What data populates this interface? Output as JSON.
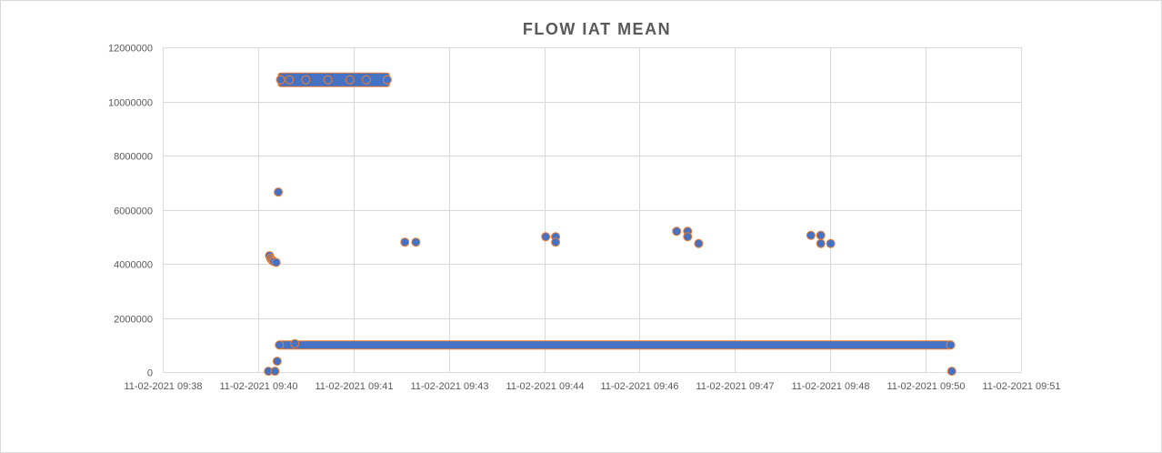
{
  "chart_data": {
    "type": "scatter",
    "title": "FLOW IAT MEAN",
    "xlabel": "",
    "ylabel": "",
    "ylim": [
      0,
      12000000
    ],
    "y_ticks": [
      0,
      2000000,
      4000000,
      6000000,
      8000000,
      10000000,
      12000000
    ],
    "y_tick_labels": [
      "0",
      "2000000",
      "4000000",
      "6000000",
      "8000000",
      "10000000",
      "12000000"
    ],
    "xlim": [
      "11-02-2021 09:38",
      "11-02-2021 09:51"
    ],
    "x_tick_labels": [
      "11-02-2021 09:38",
      "11-02-2021 09:40",
      "11-02-2021 09:41",
      "11-02-2021 09:43",
      "11-02-2021 09:44",
      "11-02-2021 09:46",
      "11-02-2021 09:47",
      "11-02-2021 09:48",
      "11-02-2021 09:50",
      "11-02-2021 09:51"
    ],
    "grid": true,
    "legend": "none",
    "marker_colors": {
      "fill": "#4472c4",
      "edge": "#ed7d31"
    },
    "points": [
      {
        "x": "11-02-2021 09:39:36",
        "y": 30000
      },
      {
        "x": "11-02-2021 09:39:37",
        "y": 4300000
      },
      {
        "x": "11-02-2021 09:39:38",
        "y": 4200000
      },
      {
        "x": "11-02-2021 09:39:39",
        "y": 4150000
      },
      {
        "x": "11-02-2021 09:39:40",
        "y": 4100000
      },
      {
        "x": "11-02-2021 09:39:41",
        "y": 4080000
      },
      {
        "x": "11-02-2021 09:39:42",
        "y": 30000
      },
      {
        "x": "11-02-2021 09:39:43",
        "y": 4050000
      },
      {
        "x": "11-02-2021 09:39:44",
        "y": 400000
      },
      {
        "x": "11-02-2021 09:39:45",
        "y": 6650000
      },
      {
        "x": "11-02-2021 09:39:46",
        "y": 1000000
      },
      {
        "x": "11-02-2021 09:39:47",
        "y": 10800000
      },
      {
        "x": "11-02-2021 09:39:55",
        "y": 10800000
      },
      {
        "x": "11-02-2021 09:40:00",
        "y": 1050000
      },
      {
        "x": "11-02-2021 09:40:10",
        "y": 10800000
      },
      {
        "x": "11-02-2021 09:40:30",
        "y": 10800000
      },
      {
        "x": "11-02-2021 09:40:50",
        "y": 10800000
      },
      {
        "x": "11-02-2021 09:41:05",
        "y": 10800000
      },
      {
        "x": "11-02-2021 09:41:24",
        "y": 10800000
      },
      {
        "x": "11-02-2021 09:41:40",
        "y": 4800000
      },
      {
        "x": "11-02-2021 09:41:50",
        "y": 4800000
      },
      {
        "x": "11-02-2021 09:43:48",
        "y": 5000000
      },
      {
        "x": "11-02-2021 09:43:57",
        "y": 5000000
      },
      {
        "x": "11-02-2021 09:43:57",
        "y": 4800000
      },
      {
        "x": "11-02-2021 09:45:47",
        "y": 5200000
      },
      {
        "x": "11-02-2021 09:45:57",
        "y": 5200000
      },
      {
        "x": "11-02-2021 09:45:57",
        "y": 5000000
      },
      {
        "x": "11-02-2021 09:46:07",
        "y": 4750000
      },
      {
        "x": "11-02-2021 09:47:49",
        "y": 5050000
      },
      {
        "x": "11-02-2021 09:47:58",
        "y": 5050000
      },
      {
        "x": "11-02-2021 09:47:58",
        "y": 4750000
      },
      {
        "x": "11-02-2021 09:48:07",
        "y": 4750000
      },
      {
        "x": "11-02-2021 09:49:56",
        "y": 1000000
      },
      {
        "x": "11-02-2021 09:49:57",
        "y": 30000
      }
    ],
    "dense_bands": [
      {
        "x_start": "11-02-2021 09:39:47",
        "x_end": "11-02-2021 09:41:24",
        "y": 10800000
      },
      {
        "x_start": "11-02-2021 09:39:46",
        "x_end": "11-02-2021 09:49:56",
        "y": 1000000
      }
    ]
  }
}
